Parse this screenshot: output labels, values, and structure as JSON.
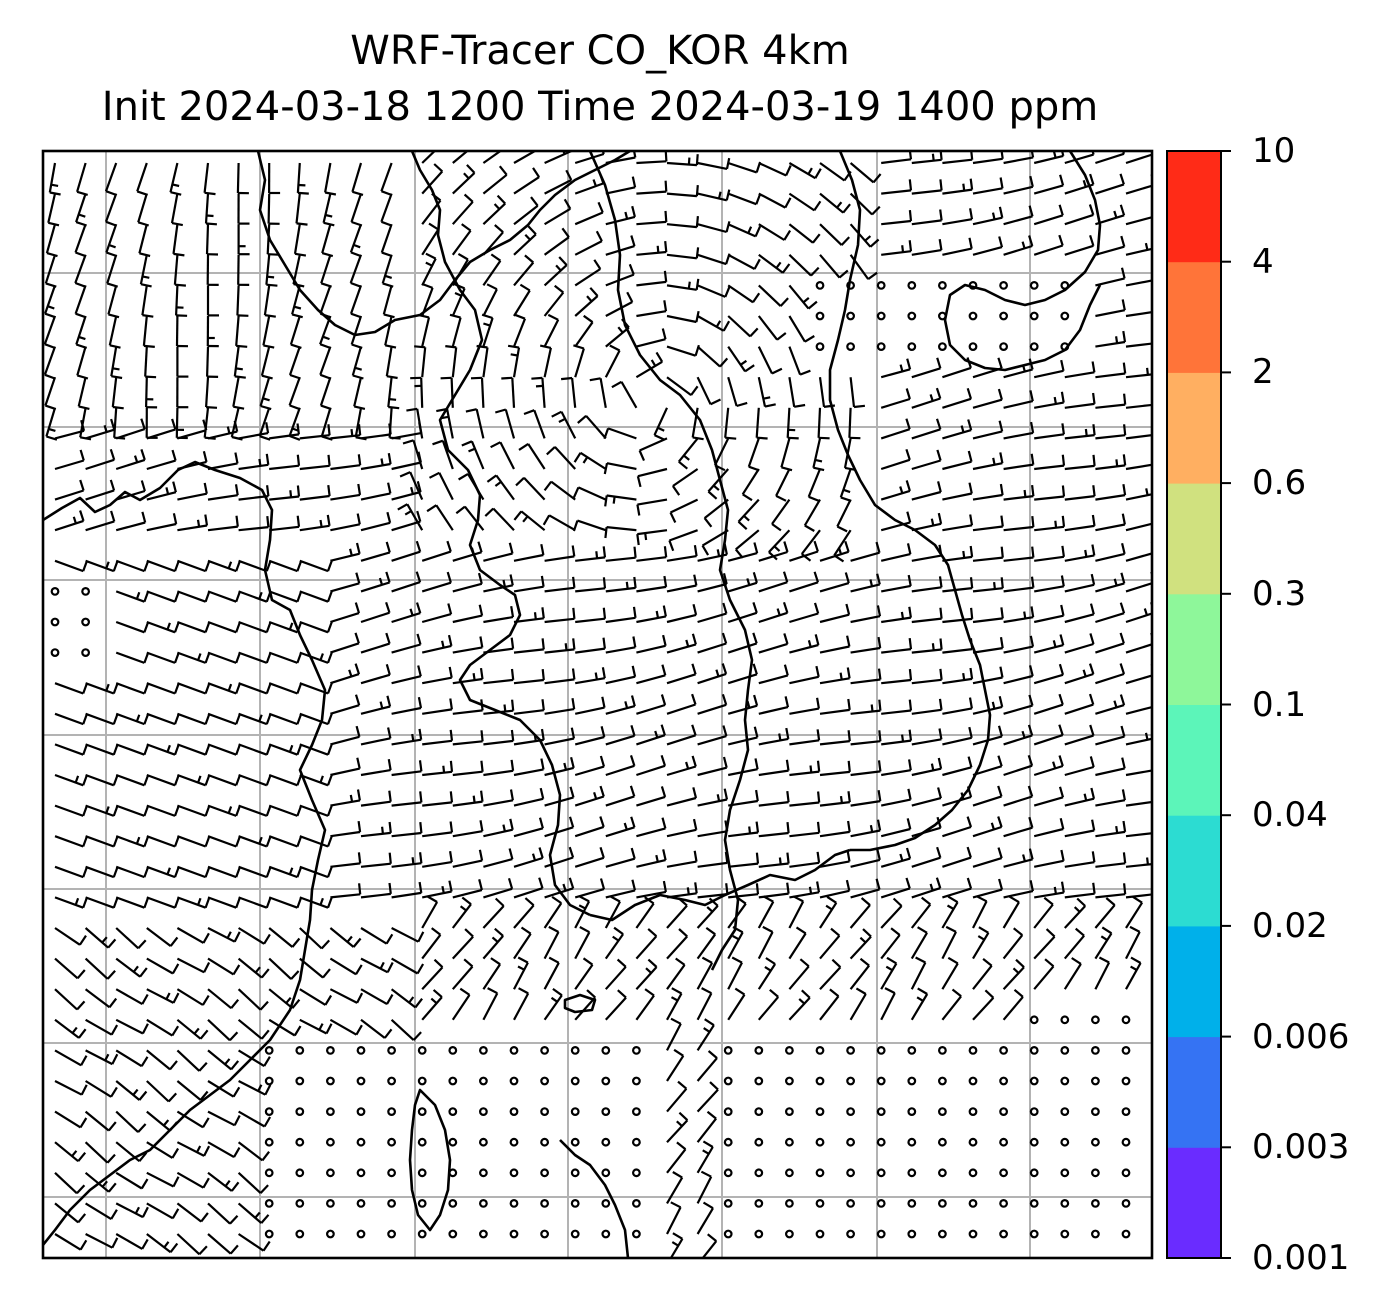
{
  "title": {
    "line1": "WRF-Tracer CO_KOR 4km",
    "line2": "Init 2024-03-18 1200 Time 2024-03-19 1400 ppm"
  },
  "colorbar": {
    "levels": [
      "0.001",
      "0.003",
      "0.006",
      "0.02",
      "0.04",
      "0.1",
      "0.3",
      "0.6",
      "2",
      "4",
      "10"
    ],
    "colors": [
      "#6a2cff",
      "#3573f3",
      "#00b0ea",
      "#2cdcd2",
      "#5cf5b9",
      "#8ef79a",
      "#d0e17f",
      "#ffaf61",
      "#ff7439",
      "#ff2b17"
    ]
  },
  "map": {
    "gridline_color": "#b3b3b3",
    "coastline_color": "#000000",
    "barb_color": "#000000"
  }
}
